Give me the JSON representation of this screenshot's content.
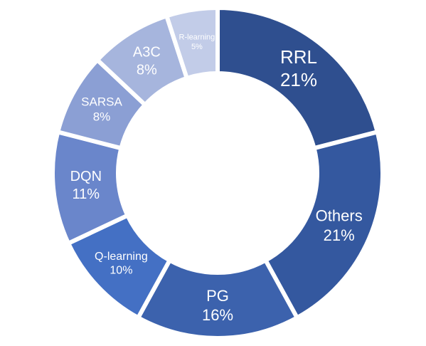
{
  "chart_data": {
    "type": "pie",
    "variant": "donut",
    "slices": [
      {
        "label": "RRL",
        "value": 21,
        "display": "21%",
        "color": "#2f4f8f",
        "text_size": 26
      },
      {
        "label": "Others",
        "value": 21,
        "display": "21%",
        "color": "#34589f",
        "text_size": 22
      },
      {
        "label": "PG",
        "value": 16,
        "display": "16%",
        "color": "#3c62ad",
        "text_size": 22
      },
      {
        "label": "Q-learning",
        "value": 10,
        "display": "10%",
        "color": "#4470c4",
        "text_size": 16
      },
      {
        "label": "DQN",
        "value": 11,
        "display": "11%",
        "color": "#6a86cb",
        "text_size": 20
      },
      {
        "label": "SARSA",
        "value": 8,
        "display": "8%",
        "color": "#8b9fd4",
        "text_size": 17
      },
      {
        "label": "A3C",
        "value": 8,
        "display": "8%",
        "color": "#a6b5dd",
        "text_size": 20
      },
      {
        "label": "R-learning",
        "value": 5,
        "display": "5%",
        "color": "#c2cce8",
        "text_size": 11
      }
    ],
    "start_angle_deg": 0,
    "direction": "clockwise",
    "legend": "none"
  }
}
